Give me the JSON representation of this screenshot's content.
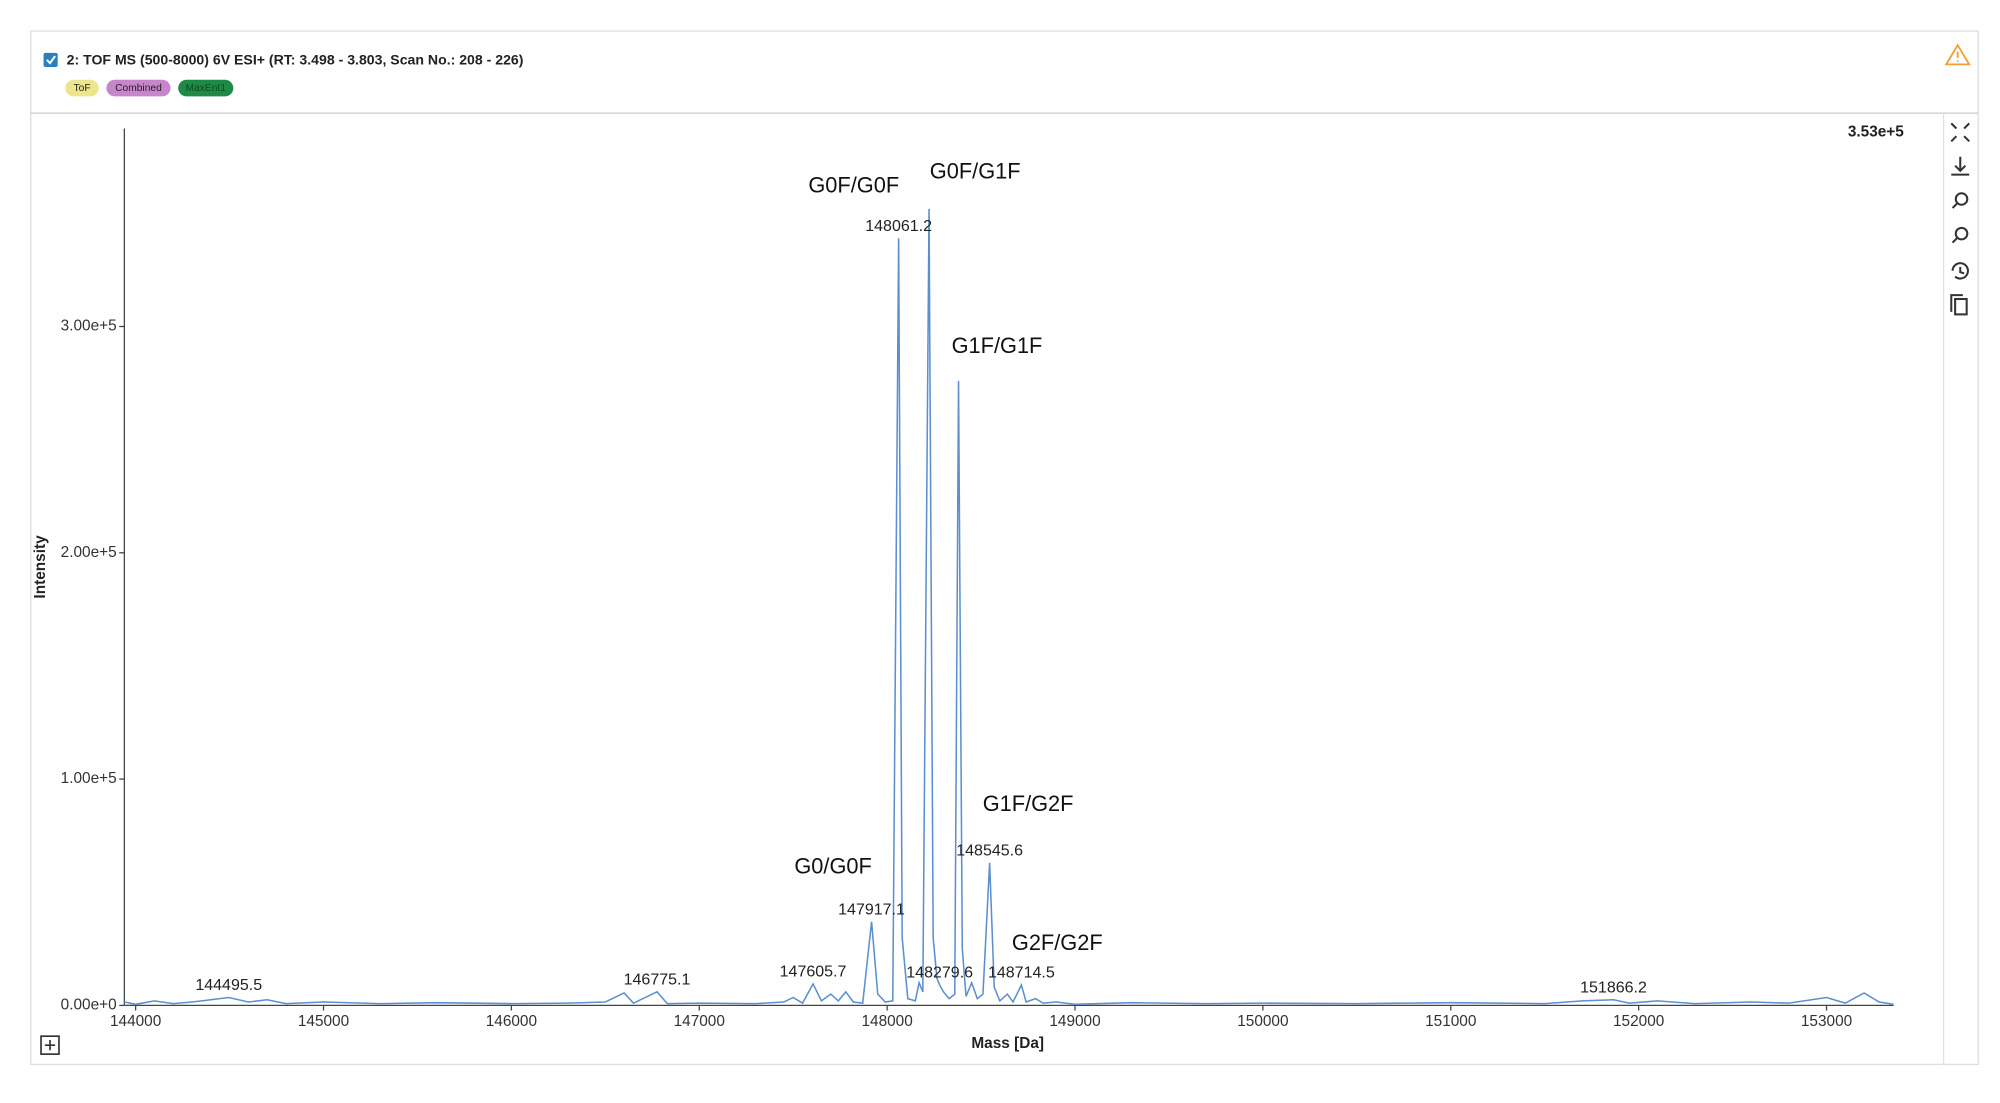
{
  "header": {
    "title": "2: TOF MS (500-8000) 6V ESI+ (RT: 3.498 - 3.803, Scan No.: 208 - 226)",
    "tags": [
      "ToF",
      "Combined",
      "MaxEnt1"
    ]
  },
  "chart_data": {
    "type": "line",
    "color": "#5b8fd0",
    "xlabel": "Mass [Da]",
    "ylabel": "Intensity",
    "max_label": "3.53e+5",
    "xlim": [
      143940,
      153357
    ],
    "ylim": [
      0,
      387500
    ],
    "xticks": [
      144000,
      145000,
      146000,
      147000,
      148000,
      149000,
      150000,
      151000,
      152000,
      153000
    ],
    "yticks": [
      {
        "value": 0,
        "label": "0.00e+0"
      },
      {
        "value": 100000,
        "label": "1.00e+5"
      },
      {
        "value": 200000,
        "label": "2.00e+5"
      },
      {
        "value": 300000,
        "label": "3.00e+5"
      }
    ],
    "x": [
      143940,
      144000,
      144100,
      144200,
      144300,
      144400,
      144495.5,
      144600,
      144700,
      144800,
      145000,
      145300,
      145600,
      146000,
      146300,
      146500,
      146600,
      146650,
      146775.1,
      146830,
      147000,
      147300,
      147450,
      147500,
      147550,
      147605.7,
      147650,
      147700,
      147740,
      147780,
      147820,
      147870,
      147917.1,
      147950,
      147990,
      148030,
      148061.2,
      148080,
      148110,
      148150,
      148170,
      148190,
      148223,
      148245,
      148265,
      148279.6,
      148300,
      148330,
      148360,
      148380,
      148400,
      148420,
      148450,
      148480,
      148510,
      148545.6,
      148570,
      148600,
      148640,
      148670,
      148714.5,
      148740,
      148790,
      148830,
      148900,
      149000,
      149300,
      149700,
      150000,
      150500,
      151000,
      151500,
      151700,
      151866.2,
      151950,
      152100,
      152300,
      152600,
      152800,
      153000,
      153100,
      153200,
      153280,
      153357
    ],
    "values": [
      1500,
      500,
      2000,
      800,
      1500,
      2500,
      3500,
      1500,
      2500,
      800,
      1500,
      800,
      1200,
      800,
      1000,
      1500,
      5500,
      1000,
      6000,
      800,
      1000,
      800,
      1500,
      3500,
      1000,
      9500,
      2000,
      5000,
      2000,
      6000,
      1500,
      1000,
      37000,
      5000,
      1500,
      2000,
      339000,
      30000,
      3000,
      2000,
      10000,
      6000,
      352000,
      30000,
      12000,
      9000,
      6000,
      3000,
      5000,
      276000,
      25000,
      4000,
      10000,
      3000,
      5000,
      63000,
      8000,
      2000,
      5000,
      1500,
      9000,
      1500,
      3000,
      1000,
      1500,
      500,
      1200,
      800,
      1000,
      800,
      1200,
      800,
      2000,
      2500,
      1000,
      2000,
      800,
      1500,
      1000,
      3500,
      1000,
      5500,
      1500,
      500
    ],
    "mass_labels": [
      {
        "x": 144495.5,
        "y": 3500
      },
      {
        "x": 146775.1,
        "y": 6000
      },
      {
        "x": 147605.7,
        "y": 9500
      },
      {
        "x": 147917.1,
        "y": 37000
      },
      {
        "x": 148061.2,
        "y": 339000
      },
      {
        "x": 148279.6,
        "y": 9000
      },
      {
        "x": 148545.6,
        "y": 63000
      },
      {
        "x": 148714.5,
        "y": 9000
      },
      {
        "x": 151866.2,
        "y": 2500
      }
    ],
    "annotations": [
      {
        "text": "G0/G0F",
        "x": 147917.1,
        "y": 37000
      },
      {
        "text": "G0F/G0F",
        "x": 148061.2,
        "y": 339000
      },
      {
        "text": "G0F/G1F",
        "x": 148223,
        "y": 352000
      },
      {
        "text": "G1F/G1F",
        "x": 148380,
        "y": 276000
      },
      {
        "text": "G1F/G2F",
        "x": 148545.6,
        "y": 63000
      },
      {
        "text": "G2F/G2F",
        "x": 148714.5,
        "y": 9000
      }
    ]
  }
}
